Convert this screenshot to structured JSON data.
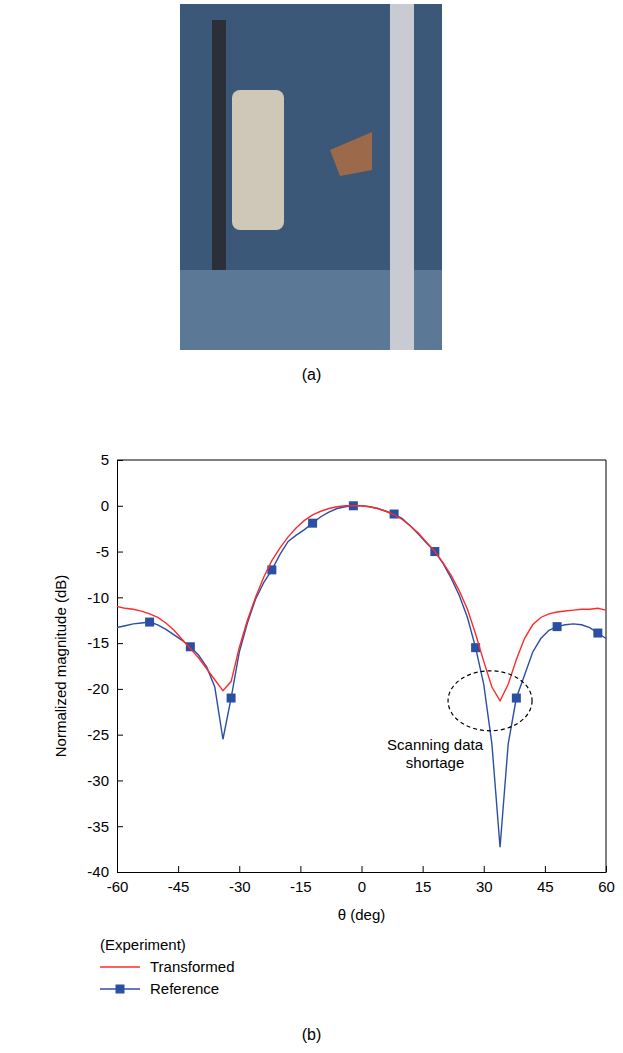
{
  "panel_labels": [
    "(a)",
    "(b)"
  ],
  "chart_data": {
    "type": "line",
    "x_label": "θ (deg)",
    "y_label": "Normalized magnitude (dB)",
    "x": [
      -60,
      -58,
      -56,
      -54,
      -52,
      -50,
      -48,
      -46,
      -44,
      -42,
      -40,
      -38,
      -36,
      -34,
      -32,
      -30,
      -28,
      -26,
      -24,
      -22,
      -20,
      -18,
      -16,
      -14,
      -12,
      -10,
      -8,
      -6,
      -4,
      -2,
      0,
      2,
      4,
      6,
      8,
      10,
      12,
      14,
      16,
      18,
      20,
      22,
      24,
      26,
      28,
      30,
      32,
      34,
      36,
      38,
      40,
      42,
      44,
      46,
      48,
      50,
      52,
      54,
      56,
      58,
      60
    ],
    "xlim": [
      -60,
      60
    ],
    "ylim": [
      -40,
      5
    ],
    "xticks": [
      -60,
      -45,
      -30,
      -15,
      0,
      15,
      30,
      45,
      60
    ],
    "yticks": [
      5,
      0,
      -5,
      -10,
      -15,
      -20,
      -25,
      -30,
      -35,
      -40
    ],
    "grid": false,
    "legend": "bottom",
    "legend_title": "(Experiment)",
    "annotations": [
      {
        "text": "Scanning data shortage"
      }
    ],
    "series": [
      {
        "name": "Transformed",
        "color": "#ff2a2a",
        "marker": "none",
        "line_style": "solid",
        "values": [
          -11.0,
          -11.2,
          -11.3,
          -11.5,
          -11.8,
          -12.2,
          -12.8,
          -13.6,
          -14.6,
          -15.6,
          -16.6,
          -17.8,
          -19.0,
          -20.2,
          -19.2,
          -15.5,
          -12.5,
          -10.0,
          -7.8,
          -6.0,
          -4.6,
          -3.4,
          -2.4,
          -1.6,
          -1.0,
          -0.6,
          -0.3,
          -0.1,
          0,
          0,
          0,
          -0.1,
          -0.3,
          -0.6,
          -1.0,
          -1.5,
          -2.2,
          -3.0,
          -4.0,
          -5.0,
          -6.2,
          -7.6,
          -9.3,
          -11.3,
          -14.0,
          -17.0,
          -19.8,
          -21.3,
          -19.5,
          -16.8,
          -14.5,
          -13.0,
          -12.2,
          -11.8,
          -11.6,
          -11.5,
          -11.4,
          -11.3,
          -11.3,
          -11.2,
          -11.4
        ]
      },
      {
        "name": "Reference",
        "color": "#2b4fa3",
        "marker": "square",
        "line_style": "solid",
        "values": [
          -13.3,
          -13.1,
          -12.9,
          -12.8,
          -12.7,
          -13.0,
          -13.5,
          -14.1,
          -14.7,
          -15.4,
          -16.3,
          -17.6,
          -19.8,
          -25.5,
          -21.0,
          -16.0,
          -12.8,
          -10.2,
          -8.4,
          -7.0,
          -5.3,
          -3.9,
          -3.2,
          -2.6,
          -1.9,
          -1.2,
          -0.7,
          -0.3,
          -0.1,
          0,
          0,
          -0.1,
          -0.3,
          -0.6,
          -0.9,
          -1.4,
          -2.2,
          -3.1,
          -4.1,
          -5.0,
          -6.3,
          -7.9,
          -9.8,
          -12.2,
          -15.5,
          -19.5,
          -26.0,
          -37.3,
          -26.0,
          -21.0,
          -18.5,
          -16.0,
          -14.5,
          -13.6,
          -13.2,
          -13.0,
          -12.9,
          -13.0,
          -13.3,
          -13.9,
          -14.5
        ]
      }
    ]
  }
}
